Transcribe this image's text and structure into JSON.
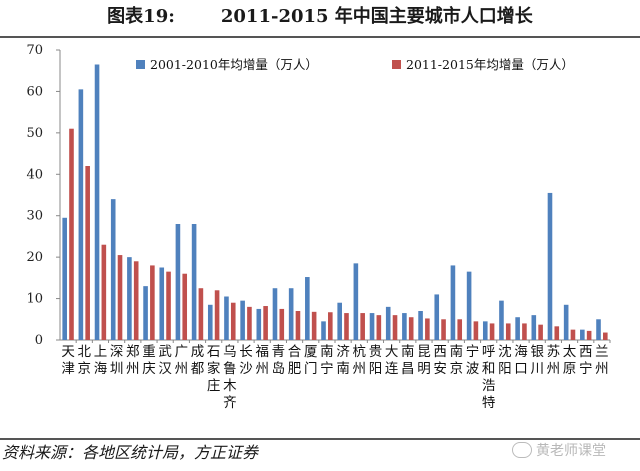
{
  "header": {
    "figure_no": "图表19:",
    "title": "2011-2015 年中国主要城市人口增长"
  },
  "footer": {
    "source": "资料来源：各地区统计局，方正证券",
    "watermark": "黄老师课堂"
  },
  "colors": {
    "series1": "#4f81bd",
    "series2": "#c0504d",
    "axis": "#888888"
  },
  "chart_data": {
    "type": "bar",
    "title": "",
    "xlabel": "",
    "ylabel": "",
    "ylim": [
      0,
      70
    ],
    "yticks": [
      0,
      10,
      20,
      30,
      40,
      50,
      60,
      70
    ],
    "grid": false,
    "legend_position": "top-right",
    "categories": [
      "天津",
      "北京",
      "上海",
      "深圳",
      "郑州",
      "重庆",
      "武汉",
      "广州",
      "成都",
      "石家庄",
      "乌鲁木齐",
      "长沙",
      "福州",
      "青岛",
      "合肥",
      "厦门",
      "南宁",
      "济南",
      "杭州",
      "贵阳",
      "大连",
      "南昌",
      "昆明",
      "西安",
      "南京",
      "宁波",
      "呼和浩特",
      "沈阳",
      "海口",
      "银川",
      "苏州",
      "太原",
      "西宁",
      "兰州"
    ],
    "series": [
      {
        "name": "2001-2010年均增量（万人）",
        "color": "#4f81bd",
        "values": [
          29.5,
          60.5,
          66.5,
          34,
          20,
          13,
          17.5,
          28,
          28,
          8.5,
          10.5,
          9.5,
          7.5,
          12.5,
          12.5,
          15.2,
          4.5,
          9,
          18.5,
          6.5,
          8,
          6.5,
          7,
          11,
          18,
          16.5,
          4.5,
          9.5,
          5.5,
          6,
          35.5,
          8.5,
          2.5,
          5
        ]
      },
      {
        "name": "2011-2015年均增量（万人）",
        "color": "#c0504d",
        "values": [
          51,
          42,
          23,
          20.5,
          19,
          18,
          16.5,
          16,
          12.5,
          12,
          9,
          8,
          8.2,
          7.5,
          7,
          6.8,
          6.7,
          6.5,
          6.5,
          6,
          6,
          5.5,
          5.2,
          5,
          5,
          4.5,
          4,
          4,
          4,
          3.7,
          3.3,
          2.5,
          2.2,
          1.8
        ]
      }
    ]
  }
}
